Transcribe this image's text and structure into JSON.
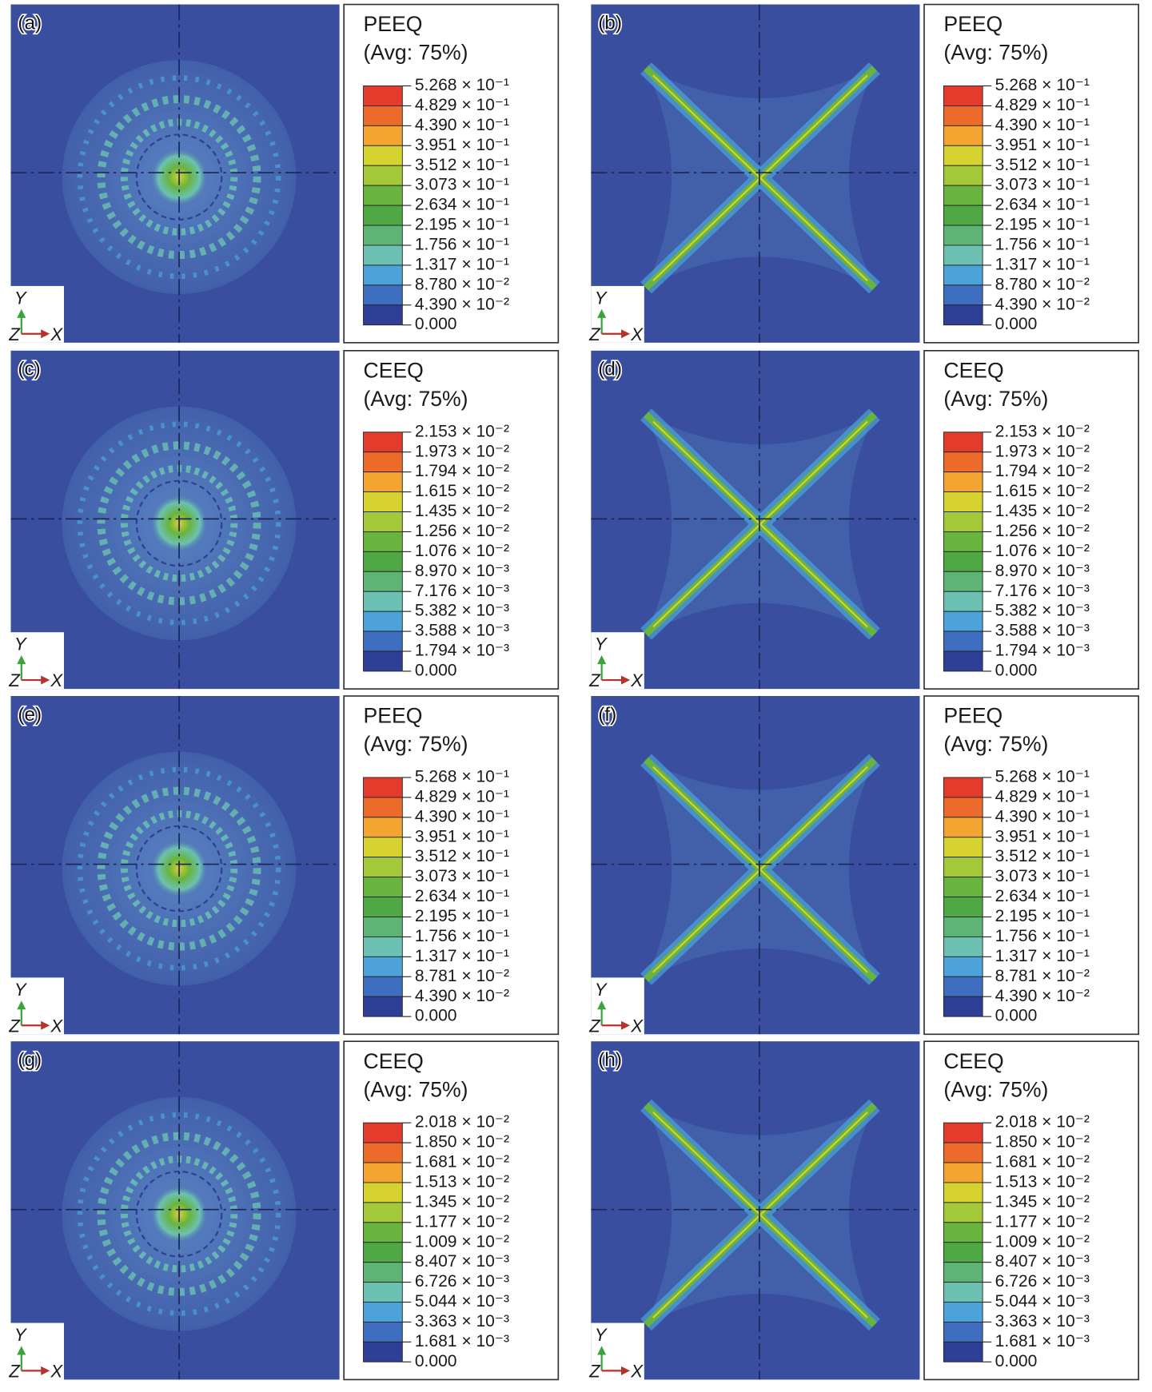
{
  "band_colors": [
    "#e33b2c",
    "#ec6a2a",
    "#f3a431",
    "#d6d22f",
    "#a3c93a",
    "#68b43e",
    "#4fa844",
    "#5db474",
    "#6cc1b2",
    "#4ba3d9",
    "#3d6ec0",
    "#2f3f96"
  ],
  "triad": {
    "y": "Y",
    "z": "Z",
    "x": "X"
  },
  "panels": [
    {
      "label": "(a)",
      "title": "PEEQ",
      "avg": "(Avg: 75%)",
      "levels": [
        "5.268 × 10⁻¹",
        "4.829 × 10⁻¹",
        "4.390 × 10⁻¹",
        "3.951 × 10⁻¹",
        "3.512 × 10⁻¹",
        "3.073 × 10⁻¹",
        "2.634 × 10⁻¹",
        "2.195 × 10⁻¹",
        "1.756 × 10⁻¹",
        "1.317 × 10⁻¹",
        "8.780 × 10⁻²",
        "4.390 × 10⁻²",
        "0.000"
      ]
    },
    {
      "label": "(b)",
      "title": "PEEQ",
      "avg": "(Avg: 75%)",
      "levels": [
        "5.268 × 10⁻¹",
        "4.829 × 10⁻¹",
        "4.390 × 10⁻¹",
        "3.951 × 10⁻¹",
        "3.512 × 10⁻¹",
        "3.073 × 10⁻¹",
        "2.634 × 10⁻¹",
        "2.195 × 10⁻¹",
        "1.756 × 10⁻¹",
        "1.317 × 10⁻¹",
        "8.780 × 10⁻²",
        "4.390 × 10⁻²",
        "0.000"
      ]
    },
    {
      "label": "(c)",
      "title": "CEEQ",
      "avg": "(Avg: 75%)",
      "levels": [
        "2.153 × 10⁻²",
        "1.973 × 10⁻²",
        "1.794 × 10⁻²",
        "1.615 × 10⁻²",
        "1.435 × 10⁻²",
        "1.256 × 10⁻²",
        "1.076 × 10⁻²",
        "8.970 × 10⁻³",
        "7.176 × 10⁻³",
        "5.382 × 10⁻³",
        "3.588 × 10⁻³",
        "1.794 × 10⁻³",
        "0.000"
      ]
    },
    {
      "label": "(d)",
      "title": "CEEQ",
      "avg": "(Avg: 75%)",
      "levels": [
        "2.153 × 10⁻²",
        "1.973 × 10⁻²",
        "1.794 × 10⁻²",
        "1.615 × 10⁻²",
        "1.435 × 10⁻²",
        "1.256 × 10⁻²",
        "1.076 × 10⁻²",
        "8.970 × 10⁻³",
        "7.176 × 10⁻³",
        "5.382 × 10⁻³",
        "3.588 × 10⁻³",
        "1.794 × 10⁻³",
        "0.000"
      ]
    },
    {
      "label": "(e)",
      "title": "PEEQ",
      "avg": "(Avg: 75%)",
      "levels": [
        "5.268 × 10⁻¹",
        "4.829 × 10⁻¹",
        "4.390 × 10⁻¹",
        "3.951 × 10⁻¹",
        "3.512 × 10⁻¹",
        "3.073 × 10⁻¹",
        "2.634 × 10⁻¹",
        "2.195 × 10⁻¹",
        "1.756 × 10⁻¹",
        "1.317 × 10⁻¹",
        "8.781 × 10⁻²",
        "4.390 × 10⁻²",
        "0.000"
      ]
    },
    {
      "label": "(f)",
      "title": "PEEQ",
      "avg": "(Avg: 75%)",
      "levels": [
        "5.268 × 10⁻¹",
        "4.829 × 10⁻¹",
        "4.390 × 10⁻¹",
        "3.951 × 10⁻¹",
        "3.512 × 10⁻¹",
        "3.073 × 10⁻¹",
        "2.634 × 10⁻¹",
        "2.195 × 10⁻¹",
        "1.756 × 10⁻¹",
        "1.317 × 10⁻¹",
        "8.781 × 10⁻²",
        "4.390 × 10⁻²",
        "0.000"
      ]
    },
    {
      "label": "(g)",
      "title": "CEEQ",
      "avg": "(Avg: 75%)",
      "levels": [
        "2.018 × 10⁻²",
        "1.850 × 10⁻²",
        "1.681 × 10⁻²",
        "1.513 × 10⁻²",
        "1.345 × 10⁻²",
        "1.177 × 10⁻²",
        "1.009 × 10⁻²",
        "8.407 × 10⁻³",
        "6.726 × 10⁻³",
        "5.044 × 10⁻³",
        "3.363 × 10⁻³",
        "1.681 × 10⁻³",
        "0.000"
      ]
    },
    {
      "label": "(h)",
      "title": "CEEQ",
      "avg": "(Avg: 75%)",
      "levels": [
        "2.018 × 10⁻²",
        "1.850 × 10⁻²",
        "1.681 × 10⁻²",
        "1.513 × 10⁻²",
        "1.345 × 10⁻²",
        "1.177 × 10⁻²",
        "1.009 × 10⁻²",
        "8.407 × 10⁻³",
        "6.726 × 10⁻³",
        "5.044 × 10⁻³",
        "3.363 × 10⁻³",
        "1.681 × 10⁻³",
        "0.000"
      ]
    }
  ]
}
